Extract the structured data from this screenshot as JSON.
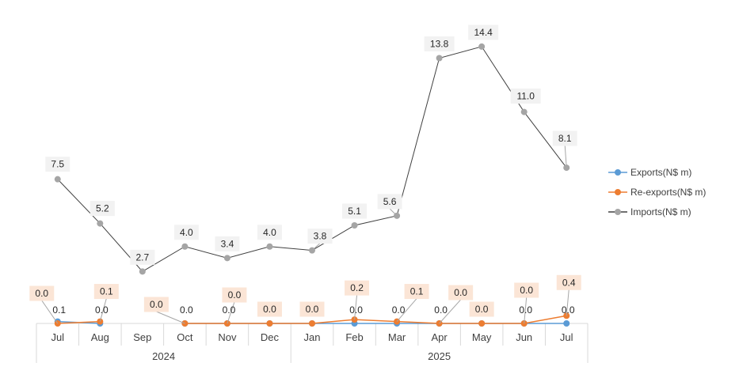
{
  "chart_data": {
    "type": "line",
    "categories": [
      "Jul",
      "Aug",
      "Sep",
      "Oct",
      "Nov",
      "Dec",
      "Jan",
      "Feb",
      "Mar",
      "Apr",
      "May",
      "Jun",
      "Jul"
    ],
    "year_groups": [
      {
        "label": "2024",
        "start": 0,
        "end": 5
      },
      {
        "label": "2025",
        "start": 6,
        "end": 12
      }
    ],
    "series": [
      {
        "name": "Exports(N$ m)",
        "color": "#5B9BD5",
        "values": [
          0.1,
          0.0,
          null,
          0.0,
          0.0,
          0.0,
          0.0,
          0.0,
          0.0,
          0.0,
          0.0,
          0.0,
          0.0
        ],
        "labels": [
          "0.1",
          "0.0",
          "",
          "0.0",
          "0.0",
          "",
          "",
          "0.0",
          "0.0",
          "0.0",
          "",
          "0.0",
          "0.0"
        ]
      },
      {
        "name": "Re-exports(N$ m)",
        "color": "#ED7D31",
        "values": [
          0.0,
          0.1,
          null,
          0.0,
          0.0,
          0.0,
          0.0,
          0.2,
          0.1,
          0.0,
          0.0,
          0.0,
          0.4
        ],
        "labels": [
          "0.0",
          "0.1",
          "",
          "0.0",
          "0.0",
          "0.0",
          "0.0",
          "0.2",
          "0.1",
          "0.0",
          "0.0",
          "0.0",
          "0.4"
        ]
      },
      {
        "name": "Imports(N$ m)",
        "color": "#A5A5A5",
        "values": [
          7.5,
          5.2,
          2.7,
          4.0,
          3.4,
          4.0,
          3.8,
          5.1,
          5.6,
          13.8,
          14.4,
          11.0,
          8.1
        ],
        "labels": [
          "7.5",
          "5.2",
          "2.7",
          "4.0",
          "3.4",
          "4.0",
          "3.8",
          "5.1",
          "5.6",
          "13.8",
          "14.4",
          "11.0",
          "8.1"
        ]
      }
    ],
    "ylim": [
      0,
      16
    ],
    "grid": false,
    "legend_position": "right"
  }
}
